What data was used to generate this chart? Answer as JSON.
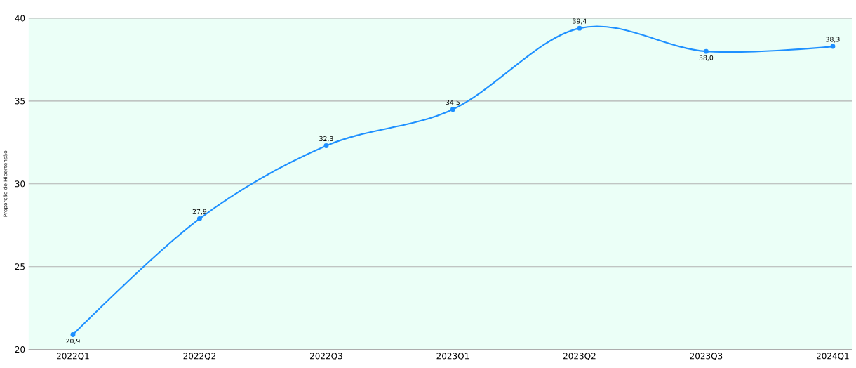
{
  "chart_data": {
    "type": "line",
    "ylabel": "Proporção de Hipertensão",
    "categories": [
      "2022Q1",
      "2022Q2",
      "2022Q3",
      "2023Q1",
      "2023Q2",
      "2023Q3",
      "2024Q1"
    ],
    "series": [
      {
        "color": "#1e90ff",
        "values": [
          20.9,
          27.9,
          32.3,
          34.5,
          39.4,
          38.0,
          38.3
        ],
        "value_labels": [
          "20,9",
          "27,9",
          "32,3",
          "34,5",
          "39,4",
          "38,0",
          "38,3"
        ]
      }
    ],
    "ylim": [
      20,
      40
    ],
    "yticks": [
      20,
      25,
      30,
      35,
      40
    ],
    "grid": "y",
    "marker": "circle",
    "line_style": "solid"
  }
}
